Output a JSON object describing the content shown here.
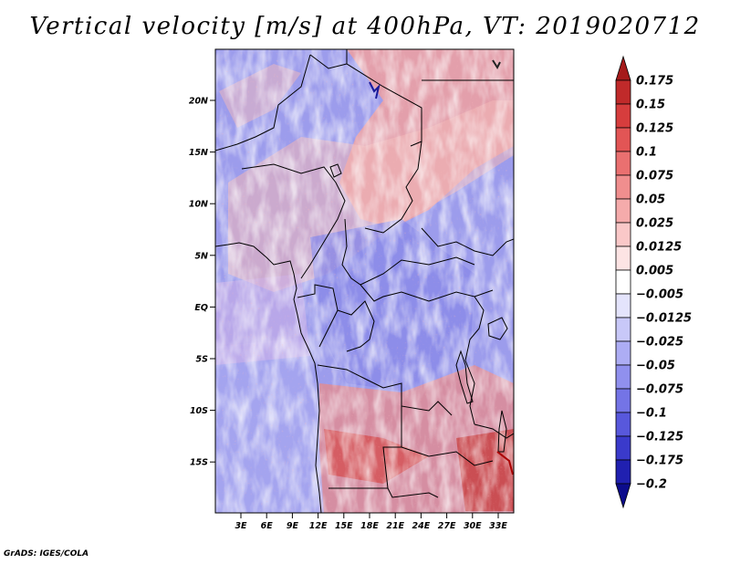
{
  "title": "Vertical velocity [m/s] at 400hPa, VT: 2019020712",
  "footer": "GrADS: IGES/COLA",
  "map": {
    "variable": "Vertical velocity",
    "units": "m/s",
    "level": "400hPa",
    "valid_time": "2019020712",
    "lat_labels": [
      "20N",
      "15N",
      "10N",
      "5N",
      "EQ",
      "5S",
      "10S",
      "15S"
    ],
    "lon_labels": [
      "3E",
      "6E",
      "9E",
      "12E",
      "15E",
      "18E",
      "21E",
      "24E",
      "27E",
      "30E",
      "33E"
    ]
  },
  "colorbar": {
    "levels": [
      "0.175",
      "0.15",
      "0.125",
      "0.1",
      "0.075",
      "0.05",
      "0.025",
      "0.0125",
      "0.005",
      "-0.005",
      "-0.0125",
      "-0.025",
      "-0.05",
      "-0.075",
      "-0.1",
      "-0.125",
      "-0.175",
      "-0.2"
    ],
    "colors": [
      "#a51a1a",
      "#c02a2a",
      "#d63d3d",
      "#e25555",
      "#ea7070",
      "#f08e8e",
      "#f5abab",
      "#fac8c8",
      "#fde4e4",
      "#ffffff",
      "#e4e4fc",
      "#c8c8f8",
      "#adadf4",
      "#9090ee",
      "#7474e6",
      "#5858dc",
      "#3a3acb",
      "#2020b0",
      "#0c0c8c"
    ]
  }
}
